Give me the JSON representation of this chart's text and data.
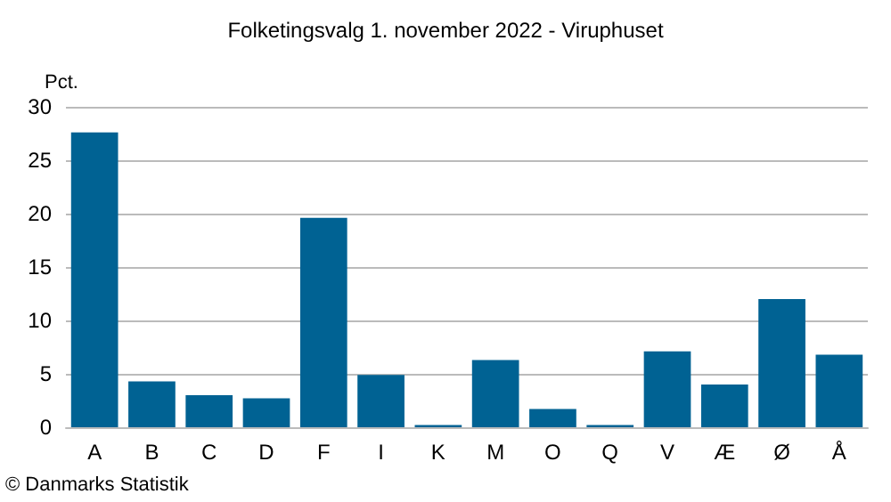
{
  "chart_data": {
    "type": "bar",
    "title": "Folketingsvalg 1. november 2022 - Viruphuset",
    "ylabel": "Pct.",
    "categories": [
      "A",
      "B",
      "C",
      "D",
      "F",
      "I",
      "K",
      "M",
      "O",
      "Q",
      "V",
      "Æ",
      "Ø",
      "Å"
    ],
    "values": [
      27.6,
      4.3,
      3.0,
      2.7,
      19.6,
      4.9,
      0.2,
      6.3,
      1.7,
      0.2,
      7.1,
      4.0,
      12.0,
      6.8
    ],
    "color": "#006293",
    "ylim": [
      0,
      30
    ],
    "yticks": [
      0,
      5,
      10,
      15,
      20,
      25,
      30
    ],
    "grid": "y",
    "annotations": [
      "© Danmarks Statistik"
    ]
  }
}
